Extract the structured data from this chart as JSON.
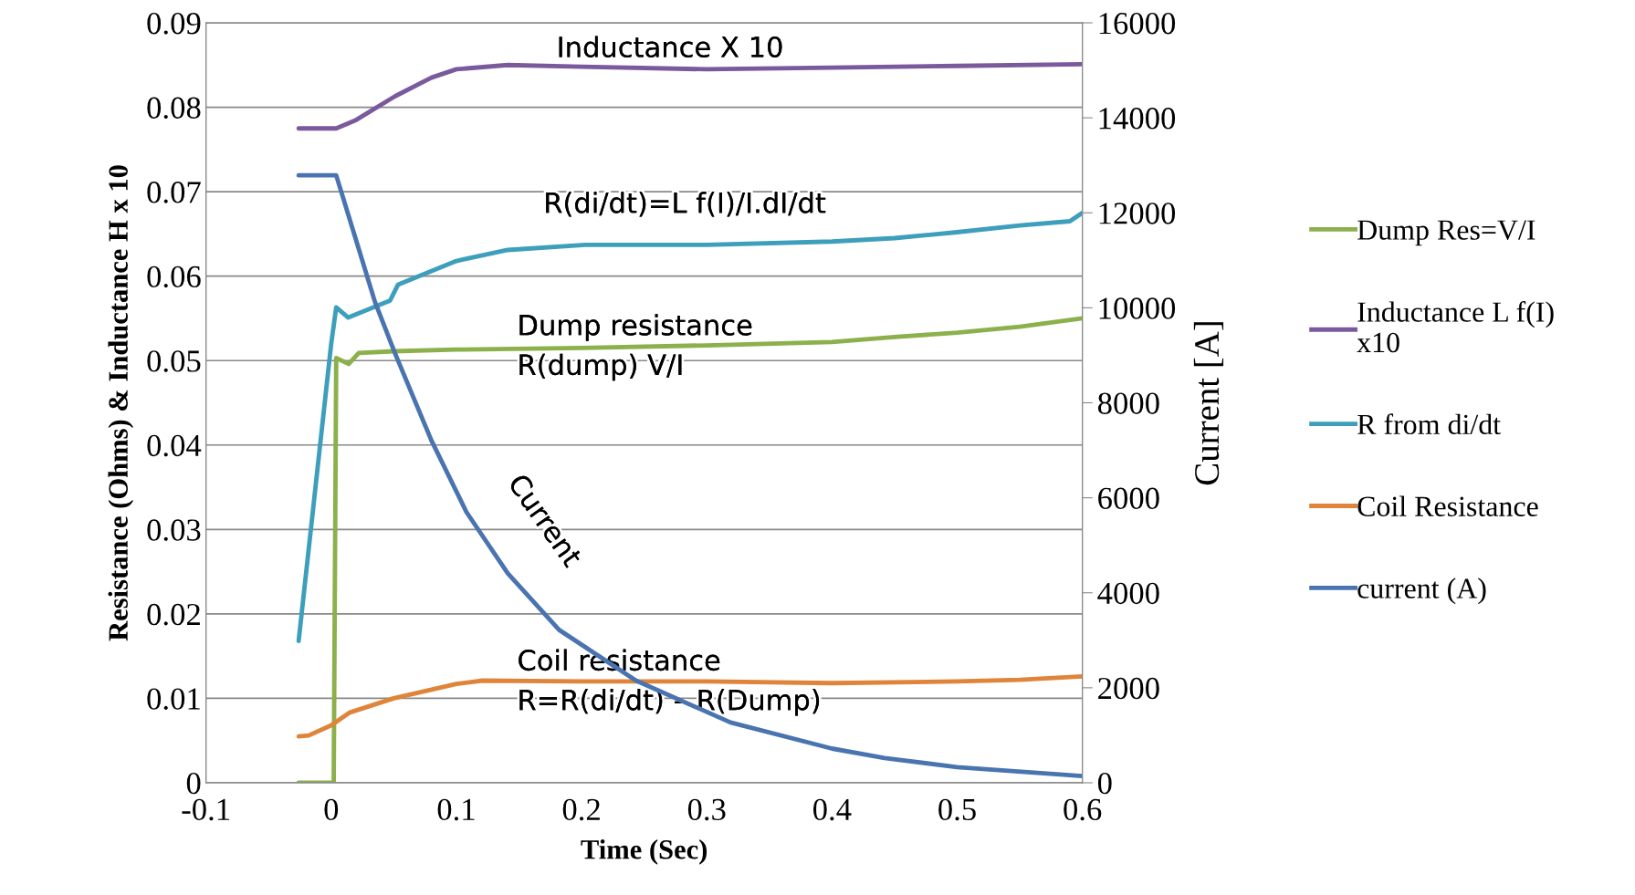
{
  "chart_data": {
    "type": "line",
    "xlabel": "Time (Sec)",
    "ylabel": "Resistance (Ohms) & Inductance H x 10",
    "y2label": "Current [A]",
    "xlim": [
      -0.1,
      0.6
    ],
    "xticks": [
      -0.1,
      0,
      0.1,
      0.2,
      0.3,
      0.4,
      0.5,
      0.6
    ],
    "ylim": [
      0,
      0.09
    ],
    "yticks": [
      0,
      0.01,
      0.02,
      0.03,
      0.04,
      0.05,
      0.06,
      0.07,
      0.08,
      0.09
    ],
    "y2lim": [
      0,
      16000
    ],
    "y2ticks": [
      0,
      2000,
      4000,
      6000,
      8000,
      10000,
      12000,
      14000,
      16000
    ],
    "grid": "y",
    "legend": "right",
    "marker": "none",
    "line_style": "solid",
    "series": [
      {
        "name": "Dump Res=V/I",
        "color": "#8cb04b",
        "x": [
          -0.026,
          0.0,
          0.002,
          0.004,
          0.014,
          0.022,
          0.05,
          0.1,
          0.2,
          0.3,
          0.4,
          0.45,
          0.5,
          0.55,
          0.6
        ],
        "values": [
          0,
          0,
          0.0,
          0.0503,
          0.0496,
          0.0509,
          0.0511,
          0.0513,
          0.0515,
          0.0518,
          0.0522,
          0.0528,
          0.0533,
          0.054,
          0.055
        ]
      },
      {
        "name": "Inductance L f(I)\nx10",
        "color": "#7a5a9c",
        "x": [
          -0.026,
          0.004,
          0.02,
          0.051,
          0.08,
          0.1,
          0.141,
          0.2,
          0.3,
          0.4,
          0.5,
          0.6
        ],
        "values": [
          0.0775,
          0.0775,
          0.0785,
          0.0813,
          0.0835,
          0.0845,
          0.085,
          0.0848,
          0.0845,
          0.0847,
          0.0849,
          0.0851
        ]
      },
      {
        "name": "R from di/dt",
        "color": "#3d9fbb",
        "x": [
          -0.026,
          0.0,
          0.004,
          0.0136,
          0.047,
          0.0534,
          0.1,
          0.141,
          0.203,
          0.3,
          0.4,
          0.45,
          0.5,
          0.55,
          0.59,
          0.6
        ],
        "values": [
          0.0168,
          0.052,
          0.0563,
          0.0551,
          0.0571,
          0.059,
          0.0618,
          0.0631,
          0.0637,
          0.0637,
          0.0641,
          0.0645,
          0.0652,
          0.066,
          0.0665,
          0.0675
        ]
      },
      {
        "name": "Coil Resistance",
        "color": "#e0843a",
        "x": [
          -0.026,
          -0.018,
          0.0,
          0.0145,
          0.05,
          0.1,
          0.121,
          0.2,
          0.3,
          0.4,
          0.5,
          0.55,
          0.6
        ],
        "values": [
          0.0055,
          0.0056,
          0.0068,
          0.0083,
          0.01,
          0.0117,
          0.0121,
          0.012,
          0.012,
          0.0118,
          0.012,
          0.0122,
          0.0126
        ]
      },
      {
        "name": "current (A)",
        "color": "#4a74b0",
        "axis": "y2",
        "x": [
          -0.026,
          0.004,
          0.035,
          0.051,
          0.08,
          0.108,
          0.141,
          0.182,
          0.2435,
          0.319,
          0.4,
          0.442,
          0.5,
          0.6
        ],
        "values": [
          12790,
          12790,
          10120,
          9040,
          7210,
          5700,
          4410,
          3220,
          2150,
          1270,
          720,
          520,
          330,
          140
        ]
      }
    ],
    "annotations": [
      "Inductance X 10",
      "R(di/dt)=L f(I)/I.dI/dt",
      "Dump resistance\nR(dump) V/I",
      "Current",
      "Coil resistance\nR=R(di/dt) – R(Dump)"
    ]
  }
}
